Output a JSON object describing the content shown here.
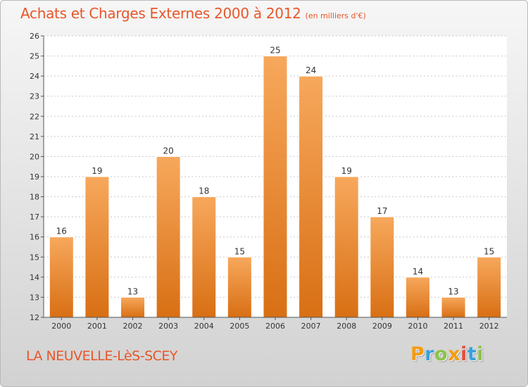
{
  "header": {
    "title": "Achats et Charges Externes 2000 à 2012",
    "unit": "(en milliers d'€)"
  },
  "footer": {
    "place": "LA NEUVELLE-LèS-SCEY",
    "logo": "Proxiti",
    "logo_colors": [
      "#f39c12",
      "#3aa0d8",
      "#8bc34a",
      "#f39c12",
      "#e74c3c",
      "#3aa0d8",
      "#8bc34a"
    ]
  },
  "colors": {
    "bar_top": "#f7a85c",
    "bar_bottom": "#d86f14",
    "title": "#e8562a",
    "axis": "#333333"
  },
  "chart_data": {
    "type": "bar",
    "title": "Achats et Charges Externes 2000 à 2012",
    "categories": [
      "2000",
      "2001",
      "2002",
      "2003",
      "2004",
      "2005",
      "2006",
      "2007",
      "2008",
      "2009",
      "2010",
      "2011",
      "2012"
    ],
    "values": [
      16,
      19,
      13,
      20,
      18,
      15,
      25,
      24,
      19,
      17,
      14,
      13,
      15
    ],
    "ylim": [
      12,
      26
    ],
    "yticks": [
      12,
      13,
      14,
      15,
      16,
      17,
      18,
      19,
      20,
      21,
      22,
      23,
      24,
      25,
      26
    ],
    "grid": true,
    "data_labels": true
  }
}
